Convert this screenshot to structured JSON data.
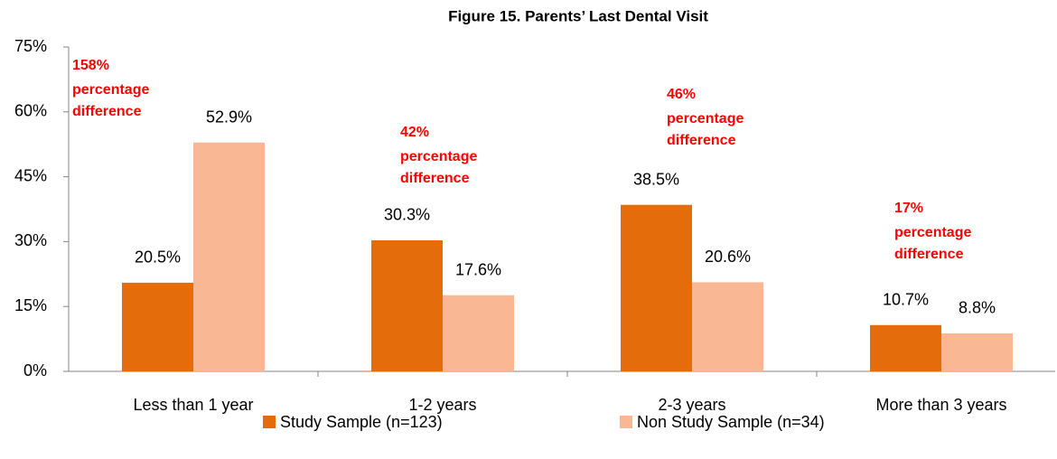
{
  "chart_data": {
    "type": "bar",
    "title": "Figure 15. Parents’ Last Dental Visit",
    "categories": [
      "Less than 1 year",
      "1-2 years",
      "2-3 years",
      "More than 3 years"
    ],
    "series": [
      {
        "name": "Study Sample (n=123)",
        "color": "#e46c0a",
        "values": [
          20.5,
          30.3,
          38.5,
          10.7
        ],
        "value_labels": [
          "20.5%",
          "30.3%",
          "38.5%",
          "10.7%"
        ]
      },
      {
        "name": "Non Study Sample (n=34)",
        "color": "#fab794",
        "values": [
          52.9,
          17.6,
          20.6,
          8.8
        ],
        "value_labels": [
          "52.9%",
          "17.6%",
          "20.6%",
          "8.8%"
        ]
      }
    ],
    "ylim": [
      0,
      75
    ],
    "yticks": [
      {
        "value": 0,
        "label": "0%"
      },
      {
        "value": 15,
        "label": "15%"
      },
      {
        "value": 30,
        "label": "30%"
      },
      {
        "value": 45,
        "label": "45%"
      },
      {
        "value": 60,
        "label": "60%"
      },
      {
        "value": 75,
        "label": "75%"
      }
    ],
    "annotations": [
      [
        "158%",
        "percentage",
        "difference"
      ],
      [
        "42%",
        "percentage",
        "difference"
      ],
      [
        "46%",
        "percentage",
        "difference"
      ],
      [
        "17%",
        "percentage",
        "difference"
      ]
    ],
    "annotation_color": "#ff0000",
    "legend": "bottom"
  }
}
